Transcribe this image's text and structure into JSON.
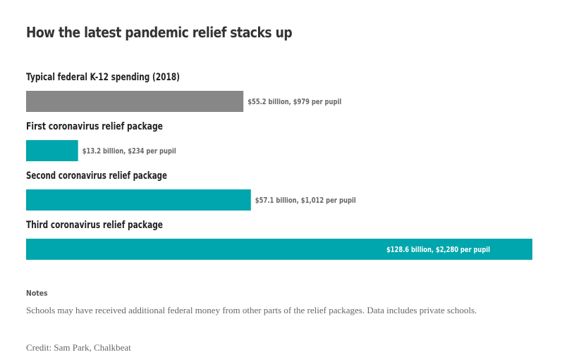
{
  "chart_data": {
    "type": "bar",
    "orientation": "horizontal",
    "title": "How the latest pandemic relief stacks up",
    "categories": [
      "Typical federal K-12 spending (2018)",
      "First coronavirus relief package",
      "Second coronavirus relief package",
      "Third coronavirus relief package"
    ],
    "values": [
      55.2,
      13.2,
      57.1,
      128.6
    ],
    "per_pupil": [
      979,
      234,
      1012,
      2280
    ],
    "data_labels": [
      "$55.2 billion, $979 per pupil",
      "$13.2 billion, $234 per pupil",
      "$57.1 billion, $1,012 per pupil",
      "$128.6 billion, $2,280 per pupil"
    ],
    "colors": [
      "#878787",
      "#00a6ad",
      "#00a6ad",
      "#00a6ad"
    ],
    "xlim": [
      0,
      128.6
    ],
    "grid": false,
    "legend": "none"
  },
  "notes": {
    "heading": "Notes",
    "text": "Schools may have received additional federal money from other parts of the relief packages. Data includes private schools."
  },
  "credit": "Credit: Sam Park, Chalkbeat"
}
